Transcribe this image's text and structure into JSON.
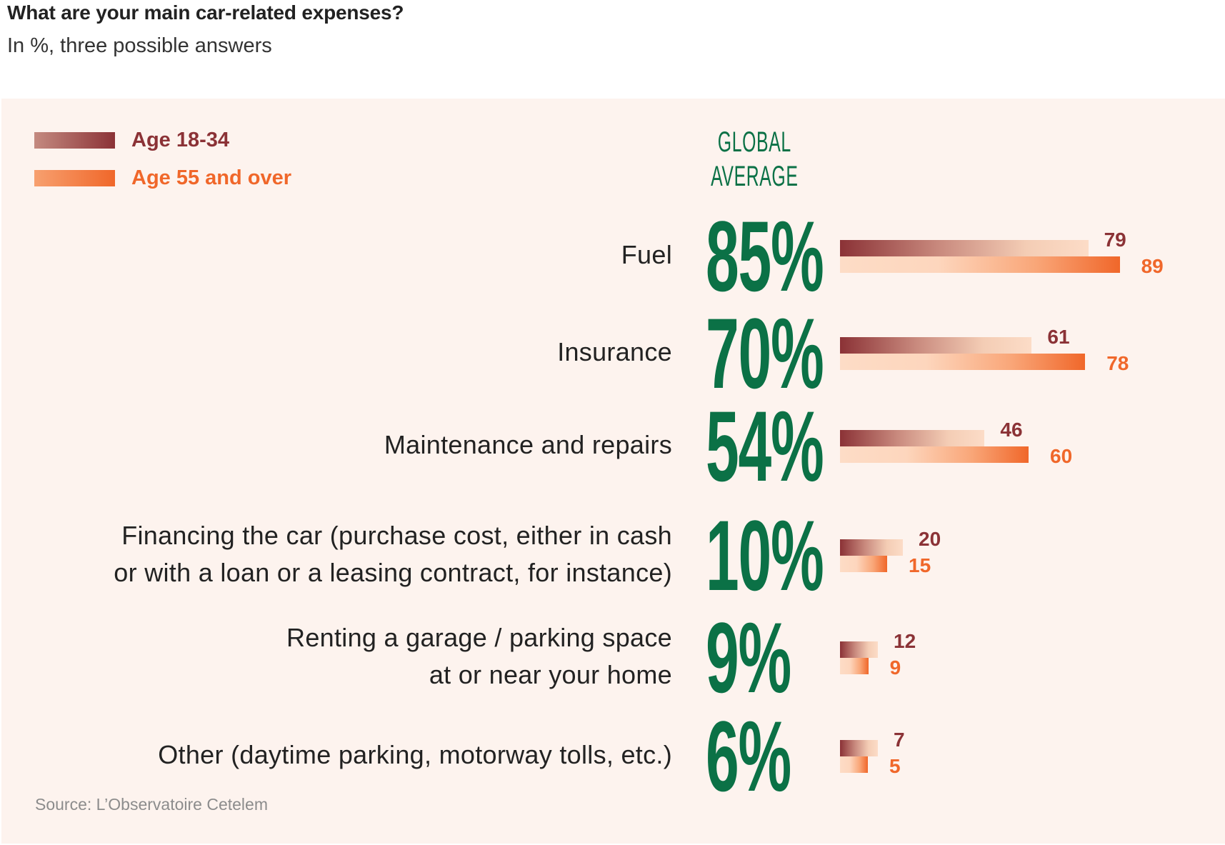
{
  "header": {
    "title": "What are your main car-related expenses?",
    "subtitle": "In %, three possible answers"
  },
  "legend": [
    {
      "label": "Age 18-34",
      "color": "#8b3236"
    },
    {
      "label": "Age 55 and over",
      "color": "#f0672a"
    }
  ],
  "global_average_heading": [
    "GLOBAL",
    "AVERAGE"
  ],
  "source": "Source: L’Observatoire Cetelem",
  "chart_data": {
    "type": "bar",
    "orientation": "horizontal",
    "title": "What are your main car-related expenses?",
    "subtitle": "In %, three possible answers",
    "unit": "%",
    "categories": [
      [
        "Fuel"
      ],
      [
        "Insurance"
      ],
      [
        "Maintenance and repairs"
      ],
      [
        "Financing the car (purchase cost, either in cash",
        "or with a loan or a leasing contract, for instance)"
      ],
      [
        "Renting a garage / parking space",
        "at or near your home"
      ],
      [
        "Other (daytime parking, motorway tolls, etc.)"
      ]
    ],
    "global_average": {
      "name": "Global average",
      "values": [
        "85%",
        "70%",
        "54%",
        "10%",
        "9%",
        "6%"
      ]
    },
    "series": [
      {
        "name": "Age 18-34",
        "color": "#8b3236",
        "values": [
          79,
          61,
          46,
          20,
          12,
          7
        ]
      },
      {
        "name": "Age 55 and over",
        "color": "#f0672a",
        "values": [
          89,
          78,
          60,
          15,
          9,
          5
        ]
      }
    ],
    "legend_position": "top-left",
    "grid": false,
    "xlim": [
      0,
      100
    ]
  }
}
